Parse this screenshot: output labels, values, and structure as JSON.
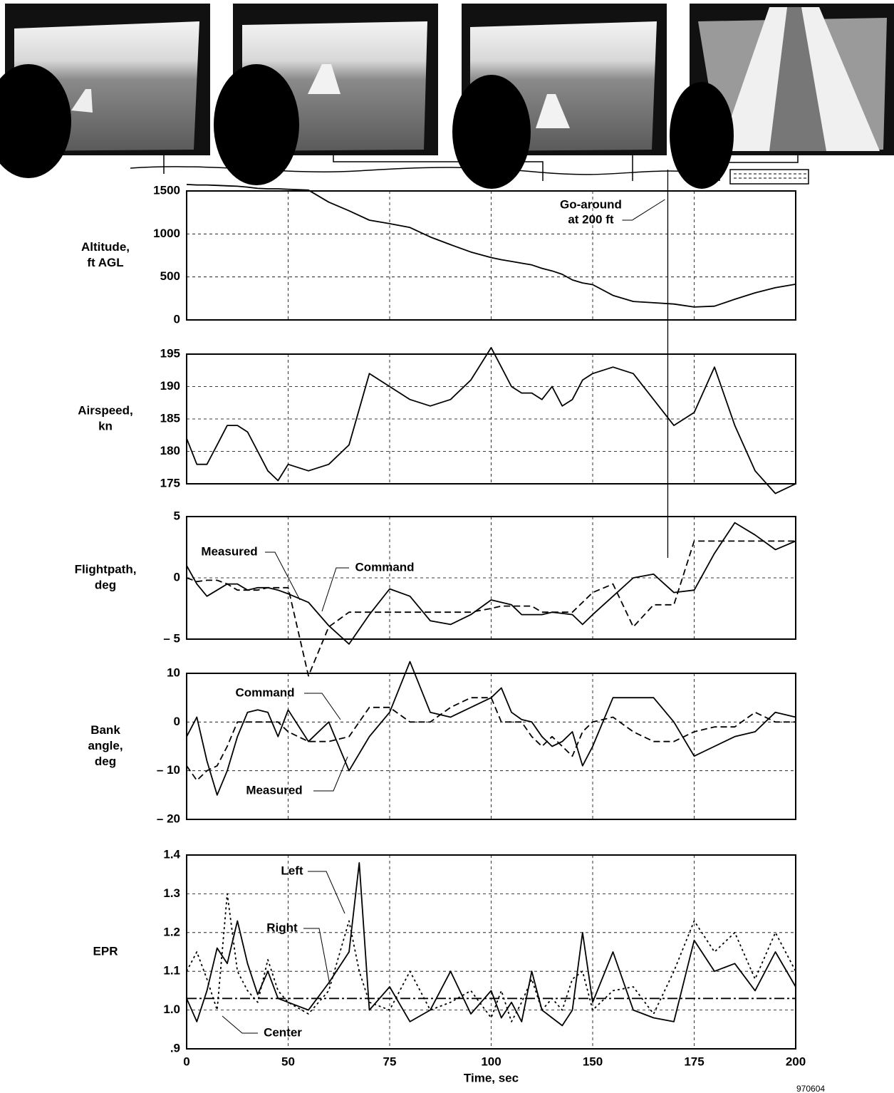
{
  "chart_data": [
    {
      "type": "line",
      "ylabel": [
        "Altitude,",
        "ft AGL"
      ],
      "x": [
        0,
        5,
        10,
        15,
        20,
        25,
        30,
        35,
        40,
        45,
        50,
        55,
        60,
        65,
        70,
        75,
        80,
        85,
        90,
        95,
        100,
        105,
        110,
        115,
        120,
        125,
        130,
        135,
        140,
        145,
        150,
        155,
        160,
        165,
        170,
        175,
        180,
        185,
        190,
        195,
        200
      ],
      "xlim": [
        0,
        200
      ],
      "xticks": [
        0,
        50,
        75,
        100,
        150,
        175,
        200
      ],
      "ylim": [
        0,
        1500
      ],
      "yticks": [
        0,
        500,
        1000,
        1500
      ],
      "grid": true,
      "series": [
        {
          "color": "#000000",
          "values": [
            1575,
            1570,
            1570,
            1565,
            1560,
            1555,
            1545,
            1530,
            1525,
            1525,
            1520,
            1510,
            1370,
            1270,
            1160,
            1120,
            1075,
            965,
            875,
            790,
            725,
            700,
            680,
            660,
            640,
            600,
            570,
            530,
            465,
            430,
            410,
            285,
            215,
            200,
            185,
            150,
            160,
            240,
            315,
            375,
            415
          ]
        }
      ],
      "annotations": [
        {
          "text": [
            "Go-around",
            "at 200 ft"
          ],
          "x": 168.5
        }
      ]
    },
    {
      "type": "line",
      "ylabel": [
        "Airspeed,",
        "kn"
      ],
      "x": [
        0,
        5,
        10,
        15,
        20,
        25,
        30,
        35,
        40,
        45,
        50,
        55,
        60,
        65,
        70,
        75,
        80,
        85,
        90,
        95,
        100,
        105,
        110,
        115,
        120,
        125,
        130,
        135,
        140,
        145,
        150,
        155,
        160,
        165,
        170,
        175,
        180,
        185,
        190,
        195,
        200
      ],
      "xlim": [
        0,
        200
      ],
      "xticks": [
        0,
        50,
        75,
        100,
        150,
        175,
        200
      ],
      "ylim": [
        175,
        195
      ],
      "yticks": [
        175,
        180,
        185,
        190,
        195
      ],
      "grid": true,
      "series": [
        {
          "color": "#000000",
          "values": [
            182,
            178,
            178,
            181,
            184,
            184,
            183,
            180,
            177,
            175.5,
            178,
            177,
            178,
            181,
            192,
            190,
            188,
            187,
            188,
            191,
            196,
            193,
            190,
            189,
            189,
            188,
            190,
            187,
            188,
            191,
            192,
            193,
            192,
            188,
            184,
            186,
            193,
            184,
            177,
            173.5,
            175
          ]
        }
      ]
    },
    {
      "type": "line",
      "ylabel": [
        "Flightpath,",
        "deg"
      ],
      "x": [
        0,
        5,
        10,
        15,
        20,
        25,
        30,
        35,
        40,
        45,
        50,
        55,
        60,
        65,
        70,
        75,
        80,
        85,
        90,
        95,
        100,
        105,
        110,
        115,
        120,
        125,
        130,
        135,
        140,
        145,
        150,
        155,
        160,
        165,
        170,
        175,
        180,
        185,
        190,
        195,
        200
      ],
      "xlim": [
        0,
        200
      ],
      "xticks": [
        0,
        50,
        75,
        100,
        150,
        175,
        200
      ],
      "ylim": [
        -5,
        5
      ],
      "yticks": [
        {
          "value": -5,
          "label": "– 5"
        },
        0,
        5
      ],
      "grid": true,
      "series": [
        {
          "name": "Measured",
          "color": "#000000",
          "dash": "solid",
          "values": [
            1,
            -0.5,
            -1.5,
            -1,
            -0.5,
            -0.5,
            -1,
            -0.8,
            -0.8,
            -1,
            -1.3,
            -2,
            -3.9,
            -5.4,
            -3,
            -0.9,
            -1.5,
            -3.5,
            -3.8,
            -3,
            -1.8,
            -2,
            -2.2,
            -3,
            -3,
            -3,
            -2.8,
            -2.9,
            -3,
            -3.8,
            -3,
            -1.5,
            0,
            0.3,
            -1.2,
            -1,
            2,
            4.5,
            3.5,
            2.3,
            3
          ]
        },
        {
          "name": "Command",
          "color": "#000000",
          "dash": "dashed",
          "values": [
            0,
            -0.3,
            -0.2,
            -0.2,
            -0.5,
            -1,
            -1,
            -1,
            -0.8,
            -0.8,
            -0.8,
            -8,
            -4,
            -2.8,
            -2.8,
            -2.8,
            -2.8,
            -2.8,
            -2.8,
            -2.8,
            -2.5,
            -2.3,
            -2.3,
            -2.3,
            -2.3,
            -2.8,
            -2.8,
            -2.8,
            -2.8,
            -2,
            -1.2,
            -0.5,
            -4,
            -2.2,
            -2.2,
            3,
            3,
            3,
            3,
            3,
            3
          ]
        }
      ]
    },
    {
      "type": "line",
      "ylabel": [
        "Bank",
        "angle,",
        "deg"
      ],
      "x": [
        0,
        5,
        10,
        15,
        20,
        25,
        30,
        35,
        40,
        45,
        50,
        55,
        60,
        65,
        70,
        75,
        80,
        85,
        90,
        95,
        100,
        105,
        110,
        115,
        120,
        125,
        130,
        135,
        140,
        145,
        150,
        155,
        160,
        165,
        170,
        175,
        180,
        185,
        190,
        195,
        200
      ],
      "xlim": [
        0,
        200
      ],
      "xticks": [
        0,
        50,
        75,
        100,
        150,
        175,
        200
      ],
      "ylim": [
        -20,
        10
      ],
      "yticks": [
        {
          "value": -20,
          "label": "– 20"
        },
        {
          "value": -10,
          "label": "– 10"
        },
        0,
        10
      ],
      "grid": true,
      "series": [
        {
          "name": "Measured",
          "color": "#000000",
          "dash": "solid",
          "values": [
            -3,
            1,
            -8,
            -15,
            -10,
            -3,
            2,
            2.5,
            2,
            -3,
            2.5,
            -4,
            0,
            -10,
            -3,
            2,
            12.4,
            2,
            1,
            3,
            5,
            7,
            2,
            0.5,
            0,
            -3,
            -5,
            -4,
            -2,
            -9,
            -5,
            5,
            5,
            5,
            0,
            -7,
            -5,
            -3,
            -2,
            2,
            1
          ]
        },
        {
          "name": "Command",
          "color": "#000000",
          "dash": "dashed",
          "values": [
            -9,
            -12,
            -10,
            -9,
            -5,
            0,
            0,
            0,
            0,
            0,
            -2,
            -4,
            -4,
            -3,
            3,
            3,
            0,
            0,
            3,
            5,
            5,
            0,
            0,
            0,
            -3,
            -5,
            -3,
            -5,
            -7,
            -2,
            0,
            1,
            -2,
            -4,
            -4,
            -2,
            -1,
            -1,
            2,
            0,
            0
          ]
        }
      ]
    },
    {
      "type": "line",
      "ylabel": [
        "EPR"
      ],
      "xlabel": "Time, sec",
      "note": "970604",
      "x": [
        0,
        5,
        10,
        15,
        20,
        25,
        30,
        35,
        40,
        45,
        50,
        55,
        60,
        65,
        67.5,
        70,
        75,
        80,
        85,
        90,
        95,
        100,
        105,
        110,
        115,
        120,
        125,
        130,
        135,
        140,
        145,
        150,
        155,
        160,
        165,
        170,
        175,
        180,
        185,
        190,
        195,
        200
      ],
      "xlim": [
        0,
        200
      ],
      "xticks": [
        0,
        50,
        75,
        100,
        150,
        175,
        200
      ],
      "ylim": [
        0.9,
        1.4
      ],
      "yticks": [
        {
          "value": 0.9,
          "label": ".9"
        },
        {
          "value": 1,
          "label": "1.0"
        },
        1.1,
        1.2,
        1.3,
        1.4
      ],
      "grid": true,
      "series": [
        {
          "name": "Left",
          "color": "#000000",
          "dash": "solid",
          "values": [
            1.03,
            0.97,
            1.05,
            1.16,
            1.12,
            1.23,
            1.12,
            1.04,
            1.1,
            1.03,
            1.02,
            1.0,
            1.07,
            1.15,
            1.38,
            1.0,
            1.06,
            0.97,
            1.0,
            1.1,
            0.99,
            1.05,
            0.98,
            1.02,
            0.97,
            1.1,
            1.0,
            0.98,
            0.96,
            1.0,
            1.2,
            1.02,
            1.15,
            1.0,
            0.98,
            0.97,
            1.18,
            1.1,
            1.12,
            1.05,
            1.15,
            1.06
          ]
        },
        {
          "name": "Right",
          "color": "#000000",
          "dash": "dotted",
          "values": [
            1.1,
            1.15,
            1.08,
            1.0,
            1.3,
            1.1,
            1.05,
            1.02,
            1.13,
            1.05,
            1.02,
            0.99,
            1.05,
            1.23,
            1.1,
            1.02,
            1.0,
            1.1,
            1.0,
            1.02,
            1.05,
            0.98,
            1.05,
            0.97,
            1.02,
            1.08,
            1.0,
            1.03,
            1.0,
            1.08,
            1.1,
            1.0,
            1.05,
            1.06,
            0.99,
            1.1,
            1.23,
            1.15,
            1.2,
            1.08,
            1.2,
            1.1
          ]
        },
        {
          "name": "Center",
          "color": "#000000",
          "dash": "dashdot",
          "values": [
            1.03,
            1.03,
            1.03,
            1.03,
            1.03,
            1.03,
            1.03,
            1.03,
            1.03,
            1.03,
            1.03,
            1.03,
            1.03,
            1.03,
            1.03,
            1.03,
            1.03,
            1.03,
            1.03,
            1.03,
            1.03,
            1.03,
            1.03,
            1.03,
            1.03,
            1.03,
            1.03,
            1.03,
            1.03,
            1.03,
            1.03,
            1.03,
            1.03,
            1.03,
            1.03,
            1.03,
            1.03,
            1.03,
            1.03,
            1.03,
            1.03,
            1.03
          ]
        }
      ]
    }
  ]
}
